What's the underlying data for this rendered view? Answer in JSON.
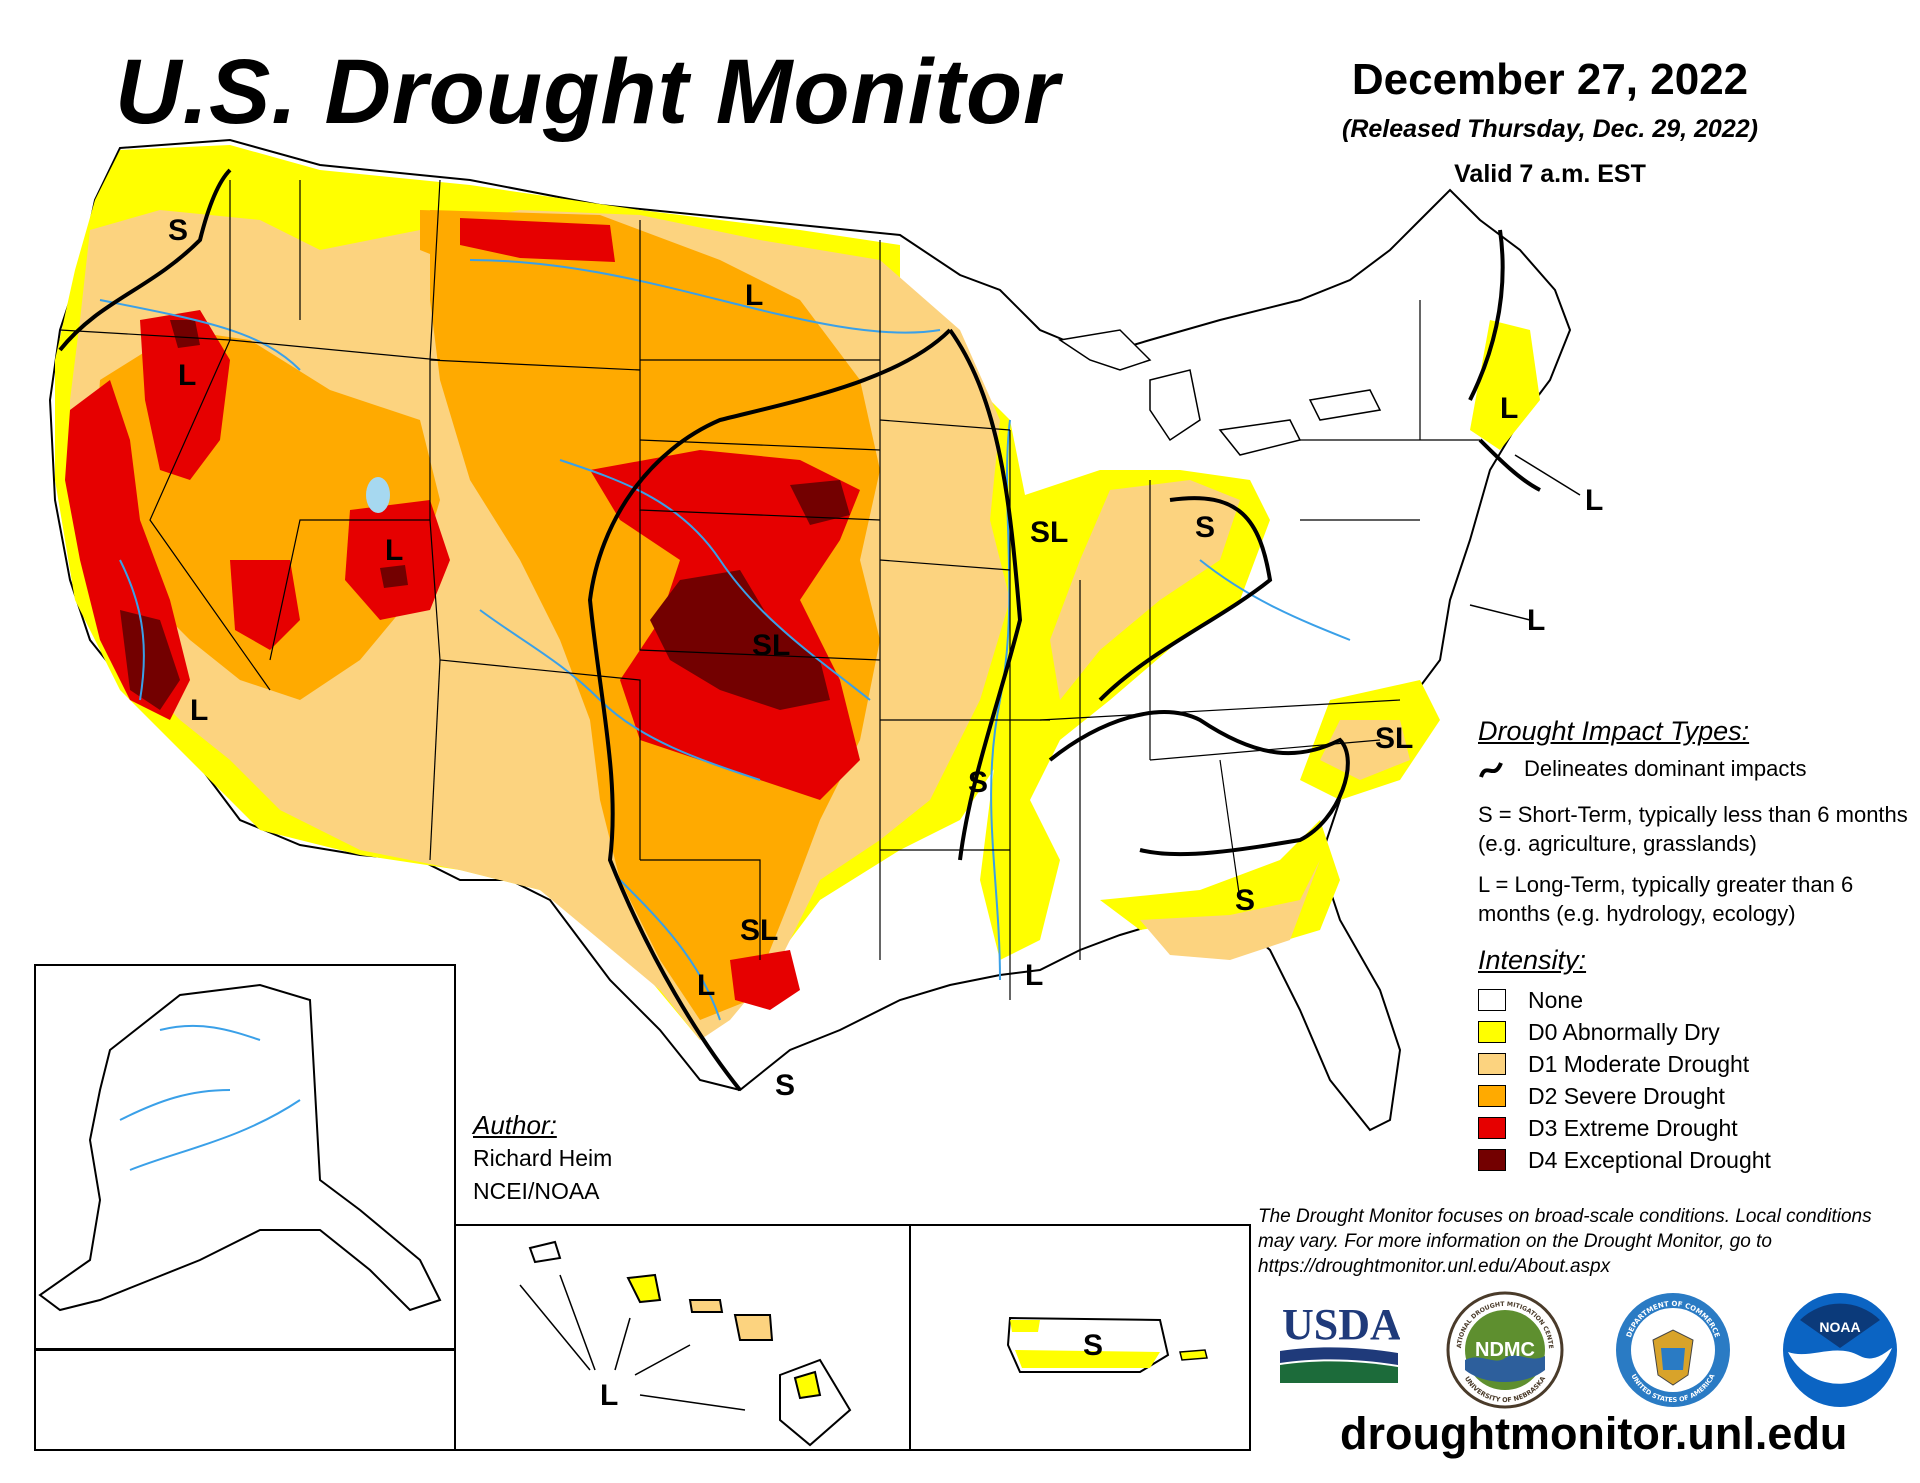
{
  "title": "U.S. Drought Monitor",
  "date": "December 27, 2022",
  "released": "(Released Thursday, Dec. 29, 2022)",
  "valid": "Valid 7 a.m. EST",
  "map_labels": {
    "wa_s": "S",
    "or_l": "L",
    "ca_l": "L",
    "ut_l": "L",
    "nd_l": "L",
    "plains_sl": "SL",
    "tx_sl": "SL",
    "tx_l": "L",
    "tx_s": "S",
    "la_l": "L",
    "ar_s": "S",
    "il_sl": "SL",
    "oh_s": "S",
    "ga_s": "S",
    "nc_sl": "SL",
    "ne_l1": "L",
    "ne_l2": "L",
    "ne_l3": "L",
    "hi_l": "L",
    "pr_s": "S"
  },
  "legend": {
    "impact_title": "Drought Impact Types:",
    "impact_line": "Delineates dominant impacts",
    "short_term": "S = Short-Term, typically less than 6 months (e.g. agriculture, grasslands)",
    "long_term": "L = Long-Term, typically greater than 6 months (e.g. hydrology, ecology)",
    "intensity_title": "Intensity:",
    "categories": [
      {
        "label": "None",
        "color": "#ffffff"
      },
      {
        "label": "D0 Abnormally Dry",
        "color": "#ffff00"
      },
      {
        "label": "D1 Moderate Drought",
        "color": "#fcd37f"
      },
      {
        "label": "D2 Severe Drought",
        "color": "#ffaa00"
      },
      {
        "label": "D3 Extreme Drought",
        "color": "#e60000"
      },
      {
        "label": "D4 Exceptional Drought",
        "color": "#730000"
      }
    ]
  },
  "author": {
    "heading": "Author:",
    "name": "Richard Heim",
    "org": "NCEI/NOAA"
  },
  "disclaimer": "The Drought Monitor focuses on broad-scale conditions. Local conditions may vary. For more information on the Drought Monitor, go to https://droughtmonitor.unl.edu/About.aspx",
  "logos": {
    "usda": "USDA",
    "ndmc": "NDMC",
    "ndmc_ring_top": "NATIONAL DROUGHT MITIGATION CENTER",
    "ndmc_ring_bottom": "UNIVERSITY OF NEBRASKA",
    "commerce_ring_top": "DEPARTMENT OF COMMERCE",
    "commerce_ring_bottom": "UNITED STATES OF AMERICA",
    "noaa": "NOAA"
  },
  "website": "droughtmonitor.unl.edu"
}
